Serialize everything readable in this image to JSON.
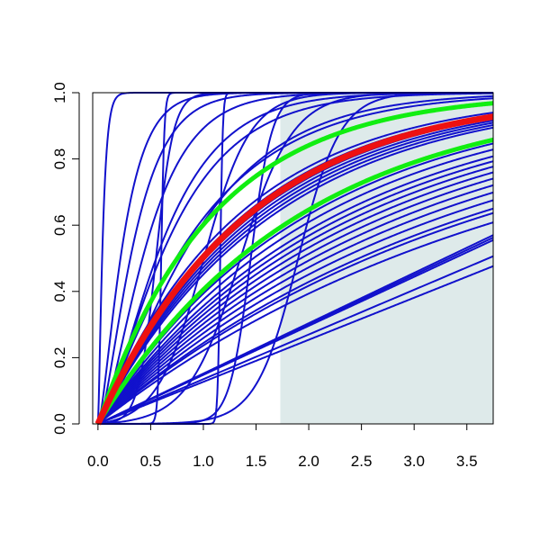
{
  "chart_data": {
    "type": "line",
    "title": "",
    "xlabel": "",
    "ylabel": "",
    "xlim": [
      -0.05,
      3.75
    ],
    "ylim": [
      0,
      1
    ],
    "x_ticks": [
      0.0,
      0.5,
      1.0,
      1.5,
      2.0,
      2.5,
      3.0,
      3.5
    ],
    "y_ticks": [
      0.0,
      0.2,
      0.4,
      0.6,
      0.8,
      1.0
    ],
    "x_tick_labels": [
      "0.0",
      "0.5",
      "1.0",
      "1.5",
      "2.0",
      "2.5",
      "3.0",
      "3.5"
    ],
    "y_tick_labels": [
      "0.0",
      "0.2",
      "0.4",
      "0.6",
      "0.8",
      "1.0"
    ],
    "grid": false,
    "legend": "none",
    "shaded_region": {
      "x_from": 1.73,
      "x_to": 3.75,
      "y_from": 0,
      "y_to": 1,
      "color": "#deeaea"
    },
    "highlight_curve": {
      "color": "#ee1111",
      "rate": 0.7
    },
    "envelope_curves": [
      {
        "color": "#11ee11",
        "rate": 0.92
      },
      {
        "color": "#11ee11",
        "rate": 0.52
      }
    ],
    "sample_curve_color": "#1111cc",
    "sample_curves": [
      {
        "kind": "exp",
        "rate": 0.52
      },
      {
        "kind": "exp",
        "rate": 0.5
      },
      {
        "kind": "exp",
        "rate": 0.47
      },
      {
        "kind": "exp",
        "rate": 0.44
      },
      {
        "kind": "exp",
        "rate": 0.42
      },
      {
        "kind": "exp",
        "rate": 0.4
      },
      {
        "kind": "exp",
        "rate": 0.38
      },
      {
        "kind": "exp",
        "rate": 0.36
      },
      {
        "kind": "exp",
        "rate": 0.34
      },
      {
        "kind": "exp",
        "rate": 0.32
      },
      {
        "kind": "exp",
        "rate": 0.3
      },
      {
        "kind": "exp",
        "rate": 0.28
      },
      {
        "kind": "exp",
        "rate": 0.27
      },
      {
        "kind": "exp",
        "rate": 0.25
      },
      {
        "kind": "exp",
        "rate": 0.6
      },
      {
        "kind": "exp",
        "rate": 0.62
      },
      {
        "kind": "exp",
        "rate": 0.64
      },
      {
        "kind": "exp",
        "rate": 0.66
      },
      {
        "kind": "exp",
        "rate": 0.68
      },
      {
        "kind": "exp",
        "rate": 0.72
      },
      {
        "kind": "exp",
        "rate": 0.75
      },
      {
        "kind": "linear",
        "slope": 0.148
      },
      {
        "kind": "linear",
        "slope": 0.15
      },
      {
        "kind": "linear",
        "slope": 0.152
      },
      {
        "kind": "linear",
        "slope": 0.135
      },
      {
        "kind": "linear",
        "slope": 0.127
      },
      {
        "kind": "gamma",
        "rate": 30,
        "shape": 1.5
      },
      {
        "kind": "gamma",
        "rate": 6,
        "shape": 1.6
      },
      {
        "kind": "gamma",
        "rate": 4.5,
        "shape": 1.7
      },
      {
        "kind": "gamma",
        "rate": 3.5,
        "shape": 1.8
      },
      {
        "kind": "gamma",
        "rate": 2.5,
        "shape": 1.7
      },
      {
        "kind": "gamma",
        "rate": 2,
        "shape": 1.5
      },
      {
        "kind": "gamma",
        "rate": 1.5,
        "shape": 1.5
      },
      {
        "kind": "gamma",
        "rate": 1.2,
        "shape": 1.2
      },
      {
        "kind": "logistic",
        "center": 0.55,
        "steepness": 12
      },
      {
        "kind": "logistic",
        "center": 1.45,
        "steepness": 10
      },
      {
        "kind": "logistic",
        "center": 1.9,
        "steepness": 5
      },
      {
        "kind": "logistic",
        "center": 1.35,
        "steepness": 4
      },
      {
        "kind": "logistic",
        "center": 1.0,
        "steepness": 4.5
      },
      {
        "kind": "step",
        "at": 0.6,
        "width": 0.015
      },
      {
        "kind": "step",
        "at": 1.16,
        "width": 0.012
      }
    ]
  }
}
